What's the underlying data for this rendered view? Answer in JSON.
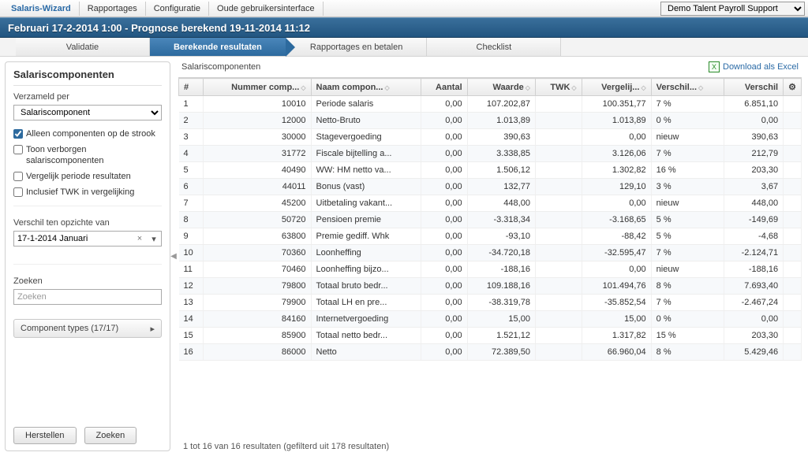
{
  "topbar": {
    "brand": "Salaris-Wizard",
    "items": [
      "Rapportages",
      "Configuratie",
      "Oude gebruikersinterface"
    ],
    "account_selected": "Demo Talent Payroll Support"
  },
  "subheader": "Februari 17-2-2014 1:00 - Prognose berekend 19-11-2014 11:12",
  "tabs": [
    {
      "label": "Validatie",
      "active": false
    },
    {
      "label": "Berekende resultaten",
      "active": true
    },
    {
      "label": "Rapportages en betalen",
      "active": false
    },
    {
      "label": "Checklist",
      "active": false
    }
  ],
  "sidebar": {
    "title": "Salariscomponenten",
    "groupby_label": "Verzameld per",
    "groupby_value": "Salariscomponent",
    "chk_alleen": {
      "checked": true,
      "label": "Alleen componenten op de strook"
    },
    "chk_toon": {
      "checked": false,
      "label": "Toon verborgen salariscomponenten"
    },
    "chk_vergelijk": {
      "checked": false,
      "label": "Vergelijk periode resultaten"
    },
    "chk_twk": {
      "checked": false,
      "label": "Inclusief TWK in vergelijking"
    },
    "compare_label": "Verschil ten opzichte van",
    "compare_value": "17-1-2014 Januari",
    "search_label": "Zoeken",
    "search_placeholder": "Zoeken",
    "types_button": "Component types (17/17)",
    "btn_reset": "Herstellen",
    "btn_search": "Zoeken"
  },
  "main": {
    "breadcrumb": "Salariscomponenten",
    "download": "Download als Excel",
    "columns": [
      "#",
      "Nummer comp...",
      "Naam compon...",
      "Aantal",
      "Waarde",
      "TWK",
      "Vergelij...",
      "Verschil...",
      "Verschil"
    ],
    "rows": [
      {
        "idx": "1",
        "num": "10010",
        "name": "Periode salaris",
        "aantal": "0,00",
        "waarde": "107.202,87",
        "twk": "",
        "verg": "100.351,77",
        "vpct": "7 %",
        "verschil": "6.851,10"
      },
      {
        "idx": "2",
        "num": "12000",
        "name": "Netto-Bruto",
        "aantal": "0,00",
        "waarde": "1.013,89",
        "twk": "",
        "verg": "1.013,89",
        "vpct": "0 %",
        "verschil": "0,00"
      },
      {
        "idx": "3",
        "num": "30000",
        "name": "Stagevergoeding",
        "aantal": "0,00",
        "waarde": "390,63",
        "twk": "",
        "verg": "0,00",
        "vpct": "nieuw",
        "verschil": "390,63"
      },
      {
        "idx": "4",
        "num": "31772",
        "name": "Fiscale bijtelling a...",
        "aantal": "0,00",
        "waarde": "3.338,85",
        "twk": "",
        "verg": "3.126,06",
        "vpct": "7 %",
        "verschil": "212,79"
      },
      {
        "idx": "5",
        "num": "40490",
        "name": "WW: HM netto va...",
        "aantal": "0,00",
        "waarde": "1.506,12",
        "twk": "",
        "verg": "1.302,82",
        "vpct": "16 %",
        "verschil": "203,30"
      },
      {
        "idx": "6",
        "num": "44011",
        "name": "Bonus (vast)",
        "aantal": "0,00",
        "waarde": "132,77",
        "twk": "",
        "verg": "129,10",
        "vpct": "3 %",
        "verschil": "3,67"
      },
      {
        "idx": "7",
        "num": "45200",
        "name": "Uitbetaling vakant...",
        "aantal": "0,00",
        "waarde": "448,00",
        "twk": "",
        "verg": "0,00",
        "vpct": "nieuw",
        "verschil": "448,00"
      },
      {
        "idx": "8",
        "num": "50720",
        "name": "Pensioen premie",
        "aantal": "0,00",
        "waarde": "-3.318,34",
        "twk": "",
        "verg": "-3.168,65",
        "vpct": "5 %",
        "verschil": "-149,69"
      },
      {
        "idx": "9",
        "num": "63800",
        "name": "Premie gediff. Whk",
        "aantal": "0,00",
        "waarde": "-93,10",
        "twk": "",
        "verg": "-88,42",
        "vpct": "5 %",
        "verschil": "-4,68"
      },
      {
        "idx": "10",
        "num": "70360",
        "name": "Loonheffing",
        "aantal": "0,00",
        "waarde": "-34.720,18",
        "twk": "",
        "verg": "-32.595,47",
        "vpct": "7 %",
        "verschil": "-2.124,71"
      },
      {
        "idx": "11",
        "num": "70460",
        "name": "Loonheffing bijzo...",
        "aantal": "0,00",
        "waarde": "-188,16",
        "twk": "",
        "verg": "0,00",
        "vpct": "nieuw",
        "verschil": "-188,16"
      },
      {
        "idx": "12",
        "num": "79800",
        "name": "Totaal bruto bedr...",
        "aantal": "0,00",
        "waarde": "109.188,16",
        "twk": "",
        "verg": "101.494,76",
        "vpct": "8 %",
        "verschil": "7.693,40"
      },
      {
        "idx": "13",
        "num": "79900",
        "name": "Totaal LH en pre...",
        "aantal": "0,00",
        "waarde": "-38.319,78",
        "twk": "",
        "verg": "-35.852,54",
        "vpct": "7 %",
        "verschil": "-2.467,24"
      },
      {
        "idx": "14",
        "num": "84160",
        "name": "Internetvergoeding",
        "aantal": "0,00",
        "waarde": "15,00",
        "twk": "",
        "verg": "15,00",
        "vpct": "0 %",
        "verschil": "0,00"
      },
      {
        "idx": "15",
        "num": "85900",
        "name": "Totaal netto bedr...",
        "aantal": "0,00",
        "waarde": "1.521,12",
        "twk": "",
        "verg": "1.317,82",
        "vpct": "15 %",
        "verschil": "203,30"
      },
      {
        "idx": "16",
        "num": "86000",
        "name": "Netto",
        "aantal": "0,00",
        "waarde": "72.389,50",
        "twk": "",
        "verg": "66.960,04",
        "vpct": "8 %",
        "verschil": "5.429,46"
      }
    ],
    "footer": "1 tot 16 van 16 resultaten (gefilterd uit 178 resultaten)"
  },
  "styling": {
    "accent": "#2a6aa6",
    "header_bg_top": "#3a6f9b",
    "header_bg_bottom": "#225580",
    "tab_active_top": "#4a86ba",
    "tab_active_bottom": "#2d6a9e",
    "row_alt_bg": "#f7f9fb",
    "grid_border": "#d0d0d0",
    "col_align": [
      "left",
      "right",
      "left",
      "right",
      "right",
      "right",
      "right",
      "left",
      "right"
    ]
  }
}
